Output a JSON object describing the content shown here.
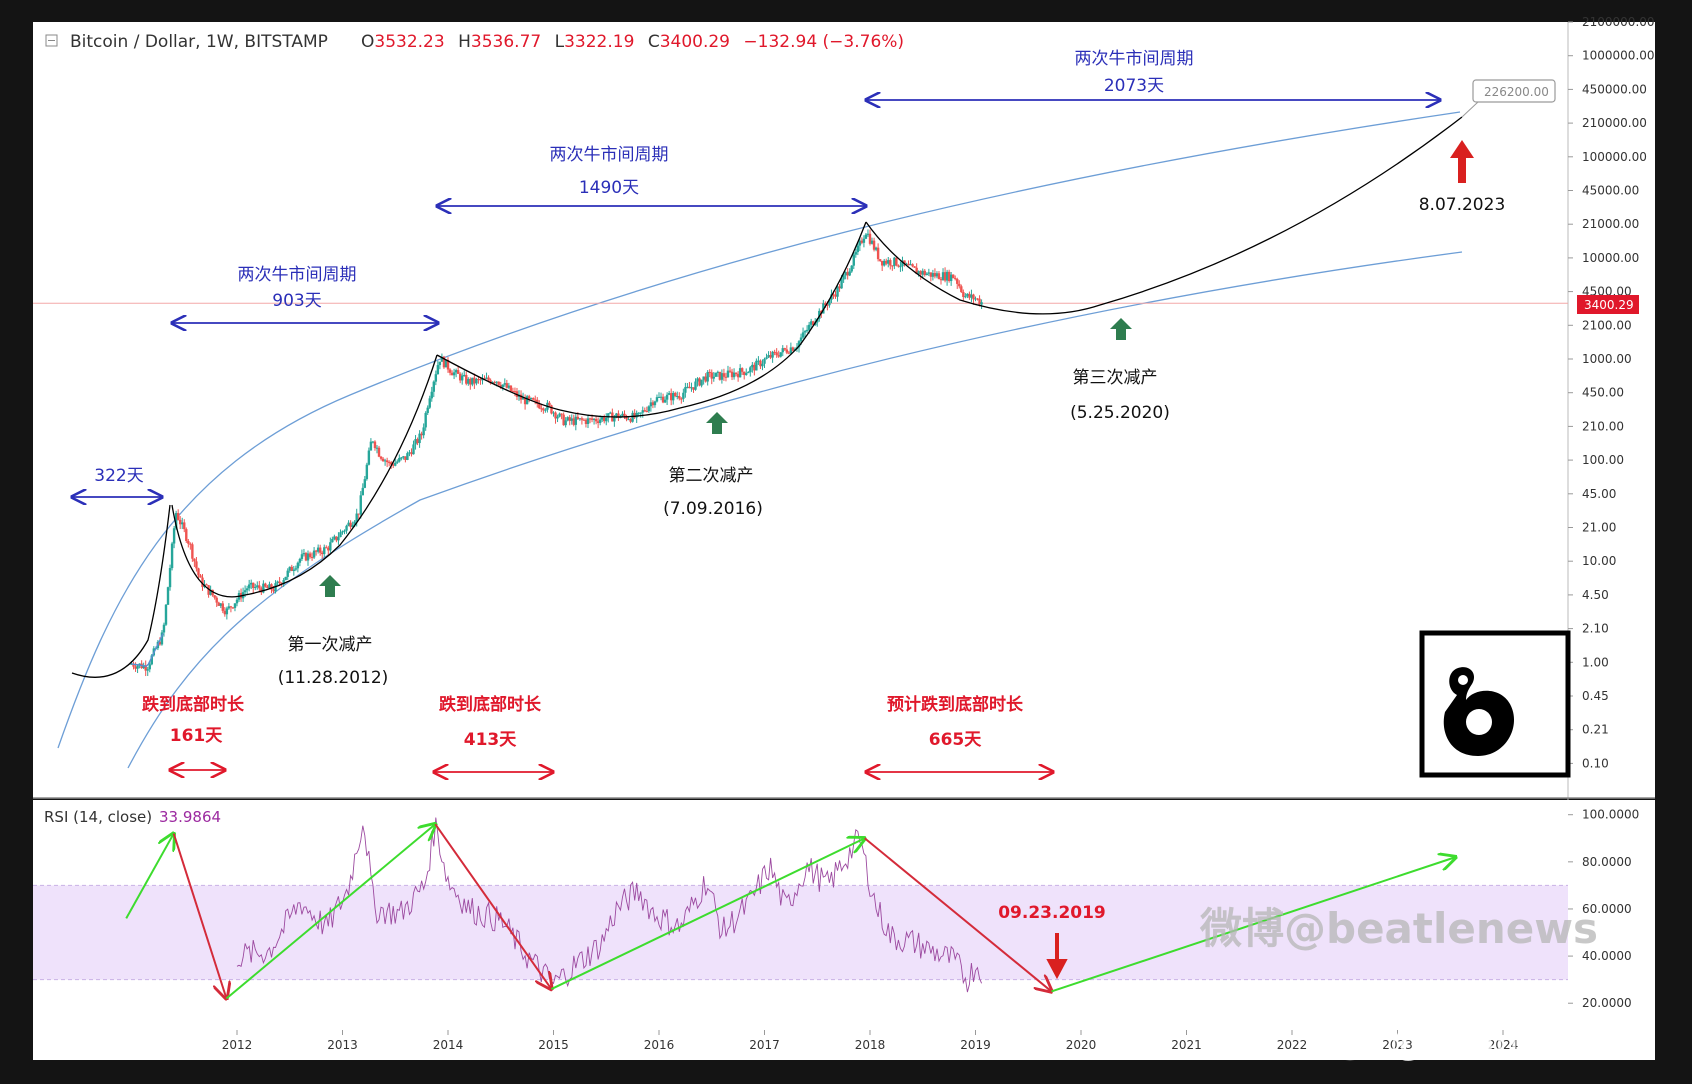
{
  "header": {
    "symbol": "Bitcoin / Dollar, 1W, BITSTAMP",
    "open_label": "O",
    "open": "3532.23",
    "high_label": "H",
    "high": "3536.77",
    "low_label": "L",
    "low": "3322.19",
    "close_label": "C",
    "close": "3400.29",
    "change": "−132.94 (−3.76%)"
  },
  "price_badge": "3400.29",
  "target_badge": "226200.00",
  "price_axis": [
    "2100000.00",
    "1000000.00",
    "450000.00",
    "210000.00",
    "100000.00",
    "45000.00",
    "21000.00",
    "10000.00",
    "4500.00",
    "2100.00",
    "1000.00",
    "450.00",
    "210.00",
    "100.00",
    "45.00",
    "21.00",
    "10.00",
    "4.50",
    "2.10",
    "1.00",
    "0.45",
    "0.21",
    "0.10"
  ],
  "rsi": {
    "label": "RSI (14, close)",
    "value": "33.9864",
    "axis": [
      "100.0000",
      "80.0000",
      "60.0000",
      "40.0000",
      "20.0000"
    ],
    "band": [
      30,
      70
    ]
  },
  "time_axis": [
    "2012",
    "2013",
    "2014",
    "2015",
    "2016",
    "2017",
    "2018",
    "2019",
    "2020",
    "2021",
    "2022",
    "2023",
    "2024"
  ],
  "annotations": {
    "cycle_1_title": "两次牛市间周期",
    "cycle_1_days": "903天",
    "cycle_2_title": "两次牛市间周期",
    "cycle_2_days": "1490天",
    "cycle_3_title": "两次牛市间周期",
    "cycle_3_days": "2073天",
    "first_run": "322天",
    "halving_1": "第一次减产",
    "halving_1_date": "(11.28.2012)",
    "halving_2": "第二次减产",
    "halving_2_date": "(7.09.2016)",
    "halving_3": "第三次减产",
    "halving_3_date": "(5.25.2020)",
    "drop_1_title": "跌到底部时长",
    "drop_1_days": "161天",
    "drop_2_title": "跌到底部时长",
    "drop_2_days": "413天",
    "drop_3_title": "预计跌到底部时长",
    "drop_3_days": "665天",
    "target_date": "8.07.2023",
    "rsi_date": "09.23.2019"
  },
  "watermark": "微博@beatlenews",
  "weibo_mark": "@BeatleNews",
  "colors": {
    "blue_annotation": "#2b2fb8",
    "red_annotation": "#e0182b",
    "up_candle": "#26a69a",
    "down_candle": "#ef5350",
    "channel": "#6d9ed6",
    "rsi_line": "#9c4aa0",
    "rsi_band": "#efe2fb",
    "green_arrow": "#3ddc2e",
    "red_arrow": "#d9201f",
    "halving_arrow": "#2e7d4f"
  },
  "chart_data": [
    {
      "type": "line",
      "title": "Bitcoin / Dollar, 1W, BITSTAMP",
      "yscale": "log",
      "ylim": [
        0.1,
        2100000
      ],
      "xlim": [
        2010.8,
        2024.6
      ],
      "price_path": [
        [
          2011.0,
          0.9
        ],
        [
          2011.15,
          0.85
        ],
        [
          2011.3,
          1.8
        ],
        [
          2011.42,
          29
        ],
        [
          2011.55,
          14
        ],
        [
          2011.65,
          6
        ],
        [
          2011.9,
          3
        ],
        [
          2012.1,
          5.2
        ],
        [
          2012.35,
          5
        ],
        [
          2012.6,
          10
        ],
        [
          2012.85,
          12.5
        ],
        [
          2013.15,
          28
        ],
        [
          2013.28,
          160
        ],
        [
          2013.35,
          110
        ],
        [
          2013.45,
          85
        ],
        [
          2013.6,
          100
        ],
        [
          2013.75,
          170
        ],
        [
          2013.82,
          400
        ],
        [
          2013.92,
          980
        ],
        [
          2014.05,
          700
        ],
        [
          2014.2,
          560
        ],
        [
          2014.45,
          600
        ],
        [
          2014.7,
          380
        ],
        [
          2014.95,
          320
        ],
        [
          2015.1,
          230
        ],
        [
          2015.35,
          235
        ],
        [
          2015.6,
          260
        ],
        [
          2015.8,
          250
        ],
        [
          2015.95,
          380
        ],
        [
          2016.2,
          420
        ],
        [
          2016.45,
          640
        ],
        [
          2016.6,
          650
        ],
        [
          2016.85,
          740
        ],
        [
          2017.05,
          1000
        ],
        [
          2017.3,
          1300
        ],
        [
          2017.5,
          2600
        ],
        [
          2017.7,
          4800
        ],
        [
          2017.85,
          9500
        ],
        [
          2017.96,
          18000
        ],
        [
          2018.1,
          9000
        ],
        [
          2018.25,
          8700
        ],
        [
          2018.45,
          7000
        ],
        [
          2018.6,
          6500
        ],
        [
          2018.8,
          6300
        ],
        [
          2018.9,
          4000
        ],
        [
          2019.0,
          3800
        ],
        [
          2019.07,
          3400.29
        ]
      ],
      "halvings": [
        {
          "date": "11.28.2012",
          "x": 2012.91
        },
        {
          "date": "7.09.2016",
          "x": 2016.52
        },
        {
          "date": "5.25.2020",
          "x": 2020.4
        }
      ],
      "projection_target": {
        "x": 2023.6,
        "y": 226200,
        "date": "8.07.2023"
      },
      "current_price": 3400.29
    },
    {
      "type": "line",
      "title": "RSI (14, close)",
      "ylim": [
        15,
        102
      ],
      "band": [
        30,
        70
      ],
      "rsi_path": [
        [
          2012.0,
          40
        ],
        [
          2012.3,
          42
        ],
        [
          2012.6,
          63
        ],
        [
          2012.85,
          52
        ],
        [
          2013.05,
          68
        ],
        [
          2013.2,
          99
        ],
        [
          2013.3,
          60
        ],
        [
          2013.55,
          58
        ],
        [
          2013.78,
          70
        ],
        [
          2013.88,
          96
        ],
        [
          2014.0,
          72
        ],
        [
          2014.2,
          60
        ],
        [
          2014.5,
          55
        ],
        [
          2014.75,
          40
        ],
        [
          2015.0,
          28
        ],
        [
          2015.2,
          36
        ],
        [
          2015.45,
          45
        ],
        [
          2015.6,
          60
        ],
        [
          2015.8,
          68
        ],
        [
          2015.95,
          58
        ],
        [
          2016.2,
          52
        ],
        [
          2016.45,
          72
        ],
        [
          2016.6,
          50
        ],
        [
          2016.85,
          62
        ],
        [
          2017.05,
          78
        ],
        [
          2017.2,
          60
        ],
        [
          2017.4,
          78
        ],
        [
          2017.6,
          70
        ],
        [
          2017.75,
          80
        ],
        [
          2017.9,
          90
        ],
        [
          2018.05,
          62
        ],
        [
          2018.2,
          48
        ],
        [
          2018.4,
          46
        ],
        [
          2018.6,
          42
        ],
        [
          2018.8,
          38
        ],
        [
          2018.92,
          30
        ],
        [
          2019.0,
          36
        ],
        [
          2019.07,
          33.9864
        ]
      ],
      "trend_arrows": [
        {
          "from": [
            2010.95,
            56
          ],
          "to": [
            2011.4,
            92
          ],
          "color": "green"
        },
        {
          "from": [
            2011.4,
            92
          ],
          "to": [
            2011.9,
            22
          ],
          "color": "red"
        },
        {
          "from": [
            2011.9,
            22
          ],
          "to": [
            2013.88,
            96
          ],
          "color": "green"
        },
        {
          "from": [
            2013.88,
            96
          ],
          "to": [
            2014.98,
            26
          ],
          "color": "red"
        },
        {
          "from": [
            2014.98,
            26
          ],
          "to": [
            2017.95,
            90
          ],
          "color": "green"
        },
        {
          "from": [
            2017.95,
            90
          ],
          "to": [
            2019.72,
            25
          ],
          "color": "red"
        },
        {
          "from": [
            2019.72,
            25
          ],
          "to": [
            2023.55,
            82
          ],
          "color": "green"
        }
      ]
    }
  ]
}
